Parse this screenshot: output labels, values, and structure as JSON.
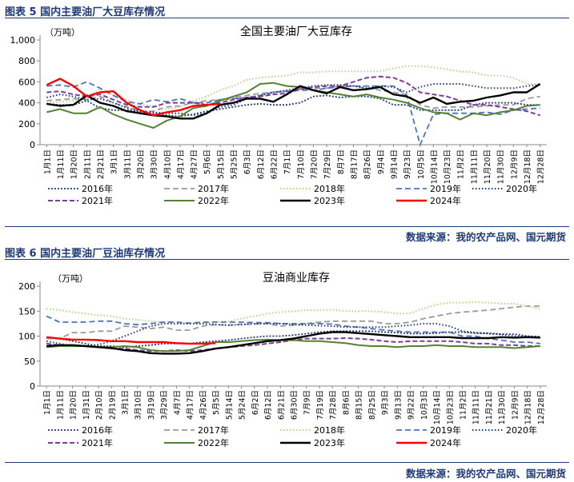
{
  "figures": [
    {
      "header": "图表 5  国内主要油厂大豆库存情况",
      "source": "数据来源：我的农产品网、国元期货",
      "chart_data": {
        "type": "line",
        "title": "全国主要油厂大豆库存",
        "ylabel": "（万吨）",
        "xlabel": "",
        "ylim": [
          0,
          1000
        ],
        "yticks": [
          0,
          200,
          400,
          600,
          800,
          1000
        ],
        "ytick_labels": [
          "0",
          "200",
          "400",
          "600",
          "800",
          "1,000"
        ],
        "grid": false,
        "legend_position": "bottom",
        "x_ticks": [
          "1月1日",
          "1月11日",
          "1月20日",
          "2月11日",
          "2月21日",
          "3月1日",
          "3月11日",
          "3月20日",
          "3月30日",
          "4月10日",
          "4月17日",
          "4月27日",
          "5月6日",
          "5月15日",
          "5月25日",
          "6月3日",
          "6月12日",
          "6月22日",
          "7月1日",
          "7月10日",
          "7月20日",
          "7月29日",
          "8月7日",
          "8月17日",
          "8月26日",
          "9月4日",
          "9月14日",
          "9月23日",
          "10月5日",
          "10月14日",
          "10月23日",
          "11月2日",
          "11月11日",
          "11月20日",
          "11月30日",
          "12月9日",
          "12月18日",
          "12月28日"
        ],
        "series": [
          {
            "name": "2016年",
            "color": "#203a7a",
            "dash": "2,2",
            "width": 1.8,
            "values": [
              390,
              380,
              380,
              420,
              350,
              330,
              330,
              310,
              300,
              280,
              270,
              290,
              320,
              340,
              360,
              380,
              390,
              380,
              380,
              400,
              460,
              470,
              450,
              460,
              460,
              440,
              380,
              380,
              330,
              330,
              330,
              330,
              380,
              400,
              400,
              400,
              380,
              380
            ]
          },
          {
            "name": "2017年",
            "color": "#9a9a9a",
            "dash": "7,4",
            "width": 1.8,
            "values": [
              420,
              430,
              440,
              430,
              460,
              400,
              360,
              320,
              320,
              360,
              370,
              400,
              420,
              430,
              450,
              470,
              490,
              500,
              510,
              530,
              540,
              540,
              560,
              560,
              540,
              520,
              500,
              480,
              380,
              350,
              360,
              360,
              360,
              370,
              380,
              380,
              440,
              460
            ]
          },
          {
            "name": "2018年",
            "color": "#b9cf8a",
            "dash": "1.5,2.5",
            "width": 2,
            "values": [
              400,
              410,
              420,
              450,
              530,
              470,
              430,
              380,
              370,
              340,
              360,
              420,
              460,
              520,
              560,
              620,
              640,
              650,
              660,
              690,
              690,
              700,
              700,
              700,
              700,
              700,
              730,
              750,
              750,
              740,
              720,
              700,
              690,
              660,
              660,
              640,
              580,
              580
            ]
          },
          {
            "name": "2019年",
            "color": "#4a74bf",
            "dash": "7,4",
            "width": 1.8,
            "values": [
              560,
              570,
              550,
              600,
              540,
              470,
              410,
              390,
              430,
              410,
              440,
              400,
              400,
              430,
              440,
              450,
              470,
              500,
              510,
              520,
              520,
              540,
              550,
              560,
              560,
              560,
              560,
              470,
              0,
              290,
              300,
              300,
              300,
              310,
              290,
              330,
              340,
              350
            ]
          },
          {
            "name": "2020年",
            "color": "#203a7a",
            "dash": "1.5,2.5",
            "width": 2,
            "values": [
              450,
              480,
              460,
              430,
              440,
              400,
              350,
              320,
              310,
              300,
              300,
              280,
              300,
              360,
              380,
              440,
              470,
              500,
              520,
              540,
              560,
              570,
              570,
              560,
              540,
              560,
              550,
              500,
              550,
              580,
              580,
              580,
              560,
              540,
              540,
              540,
              560,
              570
            ]
          },
          {
            "name": "2021年",
            "color": "#7b3f98",
            "dash": "6,3",
            "width": 2,
            "values": [
              500,
              510,
              480,
              460,
              480,
              430,
              380,
              360,
              360,
              400,
              400,
              400,
              380,
              400,
              430,
              450,
              460,
              480,
              490,
              530,
              550,
              560,
              560,
              600,
              640,
              650,
              640,
              590,
              500,
              480,
              460,
              420,
              380,
              380,
              360,
              340,
              320,
              280
            ]
          },
          {
            "name": "2022年",
            "color": "#548235",
            "dash": "",
            "width": 2,
            "values": [
              310,
              340,
              300,
              300,
              360,
              290,
              240,
              200,
              160,
              230,
              270,
              350,
              370,
              420,
              460,
              500,
              580,
              590,
              560,
              550,
              520,
              500,
              480,
              460,
              480,
              450,
              430,
              400,
              350,
              310,
              300,
              240,
              300,
              280,
              310,
              330,
              370,
              380
            ]
          },
          {
            "name": "2023年",
            "color": "#000000",
            "dash": "",
            "width": 2.4,
            "values": [
              390,
              370,
              380,
              470,
              400,
              370,
              320,
              300,
              280,
              270,
              250,
              250,
              300,
              380,
              400,
              440,
              440,
              410,
              480,
              560,
              520,
              490,
              550,
              520,
              530,
              550,
              480,
              460,
              400,
              450,
              390,
              410,
              420,
              450,
              470,
              500,
              500,
              580
            ]
          },
          {
            "name": "2024年",
            "color": "#ff0000",
            "dash": "",
            "width": 2.4,
            "values": [
              570,
              630,
              560,
              460,
              500,
              510,
              400,
              330,
              280,
              310,
              330,
              370,
              380,
              390,
              null,
              null,
              null,
              null,
              null,
              null,
              null,
              null,
              null,
              null,
              null,
              null,
              null,
              null,
              null,
              null,
              null,
              null,
              null,
              null,
              null,
              null,
              null,
              null
            ]
          }
        ]
      }
    },
    {
      "header": "图表 6  国内主要油厂豆油库存情况",
      "source": "数据来源：我的农产品网、国元期货",
      "chart_data": {
        "type": "line",
        "title": "豆油商业库存",
        "ylabel": "（万吨）",
        "xlabel": "",
        "ylim": [
          0,
          200
        ],
        "yticks": [
          0,
          50,
          100,
          150,
          200
        ],
        "ytick_labels": [
          "0",
          "50",
          "100",
          "150",
          "200"
        ],
        "grid": false,
        "legend_position": "bottom",
        "x_ticks": [
          "1月1日",
          "1月11日",
          "1月20日",
          "1月31日",
          "2月10日",
          "2月19日",
          "3月1日",
          "3月10日",
          "3月19日",
          "3月29日",
          "4月7日",
          "4月17日",
          "4月26日",
          "5月5日",
          "5月14日",
          "5月24日",
          "6月2日",
          "6月12日",
          "6月21日",
          "6月30日",
          "7月9日",
          "7月19日",
          "7月28日",
          "8月6日",
          "8月15日",
          "8月25日",
          "9月3日",
          "9月13日",
          "9月22日",
          "10月3日",
          "10月14日",
          "10月23日",
          "11月2日",
          "11月11日",
          "11月21日",
          "11月30日",
          "12月9日",
          "12月18日",
          "12月28日"
        ],
        "series": [
          {
            "name": "2016年",
            "color": "#203a7a",
            "dash": "2,2",
            "width": 1.8,
            "values": [
              97,
              95,
              90,
              85,
              80,
              80,
              78,
              80,
              82,
              85,
              85,
              85,
              88,
              90,
              92,
              95,
              98,
              100,
              100,
              102,
              105,
              108,
              110,
              110,
              110,
              110,
              108,
              107,
              105,
              105,
              106,
              108,
              108,
              106,
              106,
              104,
              104,
              100,
              99
            ]
          },
          {
            "name": "2017年",
            "color": "#9a9a9a",
            "dash": "7,4",
            "width": 1.8,
            "values": [
              95,
              95,
              107,
              107,
              110,
              110,
              120,
              118,
              115,
              118,
              112,
              112,
              120,
              123,
              122,
              124,
              124,
              125,
              120,
              122,
              125,
              128,
              130,
              130,
              130,
              130,
              125,
              125,
              128,
              135,
              140,
              145,
              148,
              150,
              152,
              155,
              158,
              160,
              160
            ]
          },
          {
            "name": "2018年",
            "color": "#b9cf8a",
            "dash": "1.5,2.5",
            "width": 2,
            "values": [
              155,
              152,
              148,
              145,
              142,
              140,
              135,
              133,
              130,
              128,
              125,
              125,
              125,
              128,
              130,
              135,
              140,
              145,
              148,
              150,
              152,
              152,
              153,
              150,
              150,
              150,
              148,
              145,
              146,
              155,
              163,
              167,
              167,
              168,
              167,
              165,
              165,
              160,
              154
            ]
          },
          {
            "name": "2019年",
            "color": "#4a74bf",
            "dash": "7,4",
            "width": 1.8,
            "values": [
              140,
              128,
              128,
              128,
              130,
              130,
              125,
              123,
              125,
              128,
              128,
              126,
              128,
              128,
              128,
              128,
              127,
              127,
              125,
              125,
              125,
              125,
              124,
              120,
              118,
              115,
              112,
              110,
              108,
              108,
              108,
              108,
              100,
              100,
              95,
              92,
              88,
              88,
              85
            ]
          },
          {
            "name": "2020年",
            "color": "#203a7a",
            "dash": "1.5,2.5",
            "width": 2,
            "values": [
              90,
              85,
              80,
              80,
              83,
              90,
              100,
              110,
              120,
              125,
              125,
              125,
              125,
              123,
              122,
              123,
              125,
              125,
              125,
              123,
              122,
              121,
              120,
              118,
              118,
              118,
              118,
              120,
              122,
              125,
              125,
              120,
              110,
              107,
              105,
              103,
              100,
              99,
              98
            ]
          },
          {
            "name": "2021年",
            "color": "#7b3f98",
            "dash": "6,3",
            "width": 2,
            "values": [
              85,
              82,
              80,
              80,
              78,
              75,
              75,
              72,
              70,
              70,
              72,
              70,
              72,
              75,
              78,
              80,
              82,
              85,
              88,
              92,
              95,
              95,
              95,
              96,
              95,
              93,
              90,
              88,
              90,
              90,
              90,
              90,
              88,
              85,
              85,
              82,
              82,
              80,
              80
            ]
          },
          {
            "name": "2022年",
            "color": "#548235",
            "dash": "",
            "width": 2,
            "values": [
              78,
              80,
              80,
              80,
              78,
              78,
              80,
              78,
              72,
              70,
              70,
              72,
              80,
              88,
              88,
              90,
              92,
              93,
              92,
              92,
              90,
              90,
              88,
              86,
              82,
              80,
              80,
              78,
              80,
              80,
              82,
              80,
              80,
              78,
              78,
              78,
              76,
              78,
              80
            ]
          },
          {
            "name": "2023年",
            "color": "#000000",
            "dash": "",
            "width": 2.4,
            "values": [
              80,
              82,
              82,
              80,
              78,
              76,
              72,
              70,
              66,
              65,
              65,
              66,
              70,
              75,
              78,
              82,
              86,
              90,
              92,
              95,
              100,
              105,
              108,
              108,
              106,
              104,
              102,
              100,
              98,
              98,
              98,
              98,
              96,
              96,
              96,
              98,
              97,
              98,
              97
            ]
          },
          {
            "name": "2024年",
            "color": "#ff0000",
            "dash": "",
            "width": 2.4,
            "values": [
              98,
              95,
              93,
              93,
              92,
              90,
              90,
              88,
              88,
              88,
              86,
              85,
              85,
              86,
              null,
              null,
              null,
              null,
              null,
              null,
              null,
              null,
              null,
              null,
              null,
              null,
              null,
              null,
              null,
              null,
              null,
              null,
              null,
              null,
              null,
              null,
              null,
              null,
              null
            ]
          }
        ]
      }
    }
  ]
}
